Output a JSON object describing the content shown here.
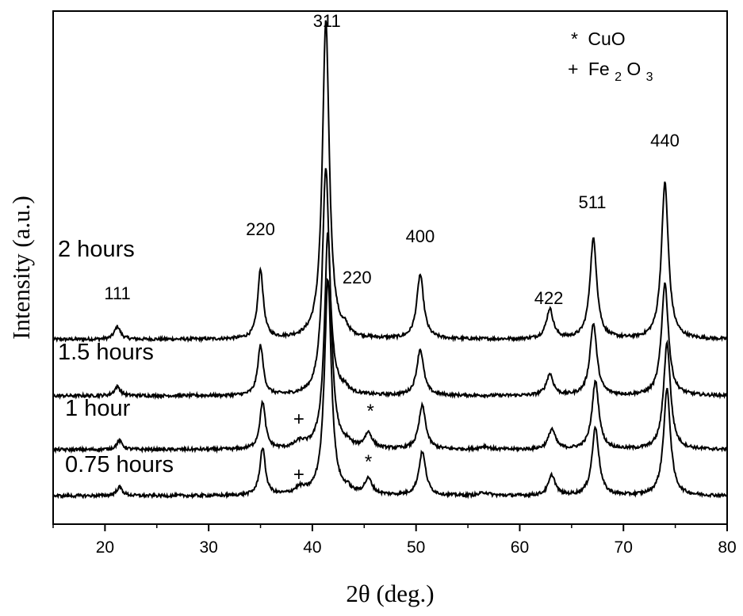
{
  "chart_data": {
    "type": "line",
    "xlabel": "2θ (deg.)",
    "ylabel": "Intensity (a.u.)",
    "xlim": [
      15,
      80
    ],
    "x_ticks": [
      20,
      30,
      40,
      50,
      60,
      70,
      80
    ],
    "x_minor_step": 5,
    "grid": false,
    "y_ticks_shown": false,
    "series_color": "#000000",
    "series": [
      {
        "name": "2 hours",
        "baseline": 0.36,
        "scale": 1.0
      },
      {
        "name": "1.5 hours",
        "baseline": 0.25,
        "scale": 0.72
      },
      {
        "name": "1 hour",
        "baseline": 0.145,
        "scale": 0.68,
        "extra_peaks": true
      },
      {
        "name": "0.75 hours",
        "baseline": 0.055,
        "scale": 0.68,
        "extra_peaks": true
      }
    ],
    "peaks": [
      {
        "x": 21.2,
        "height": 0.025,
        "width": 0.35
      },
      {
        "x": 35.0,
        "height": 0.135,
        "width": 0.32
      },
      {
        "x": 41.3,
        "height": 0.62,
        "width": 0.4
      },
      {
        "x": 43.2,
        "height": 0.012,
        "width": 0.3
      },
      {
        "x": 50.4,
        "height": 0.125,
        "width": 0.4
      },
      {
        "x": 62.9,
        "height": 0.058,
        "width": 0.4
      },
      {
        "x": 67.1,
        "height": 0.195,
        "width": 0.4
      },
      {
        "x": 74.0,
        "height": 0.305,
        "width": 0.4
      }
    ],
    "impurity_peaks": [
      {
        "x": 38.8,
        "height": 0.012,
        "width": 0.6
      },
      {
        "x": 45.4,
        "height": 0.03,
        "width": 0.45
      },
      {
        "x": 56.6,
        "height": 0.006,
        "width": 0.5
      }
    ],
    "annotations": [
      {
        "text": "111",
        "x": 21.2
      },
      {
        "text": "220",
        "x": 35.0
      },
      {
        "text": "311",
        "x": 41.4
      },
      {
        "text": "220",
        "x": 44.0
      },
      {
        "text": "400",
        "x": 50.4
      },
      {
        "text": "422",
        "x": 62.8
      },
      {
        "text": "511",
        "x": 67.0
      },
      {
        "text": "440",
        "x": 74.0
      }
    ],
    "markers": [
      {
        "text": "+",
        "x": 38.7,
        "series": "1 hour"
      },
      {
        "text": "*",
        "x": 45.6,
        "series": "1 hour"
      },
      {
        "text": "+",
        "x": 38.7,
        "series": "0.75 hours"
      },
      {
        "text": "*",
        "x": 45.4,
        "series": "0.75 hours"
      }
    ],
    "legend": {
      "position": "top-right",
      "items": [
        {
          "symbol": "*",
          "label": "CuO"
        },
        {
          "symbol": "+",
          "label": "Fe",
          "sub1": "2",
          "mid": "O",
          "sub2": "3"
        }
      ]
    }
  }
}
